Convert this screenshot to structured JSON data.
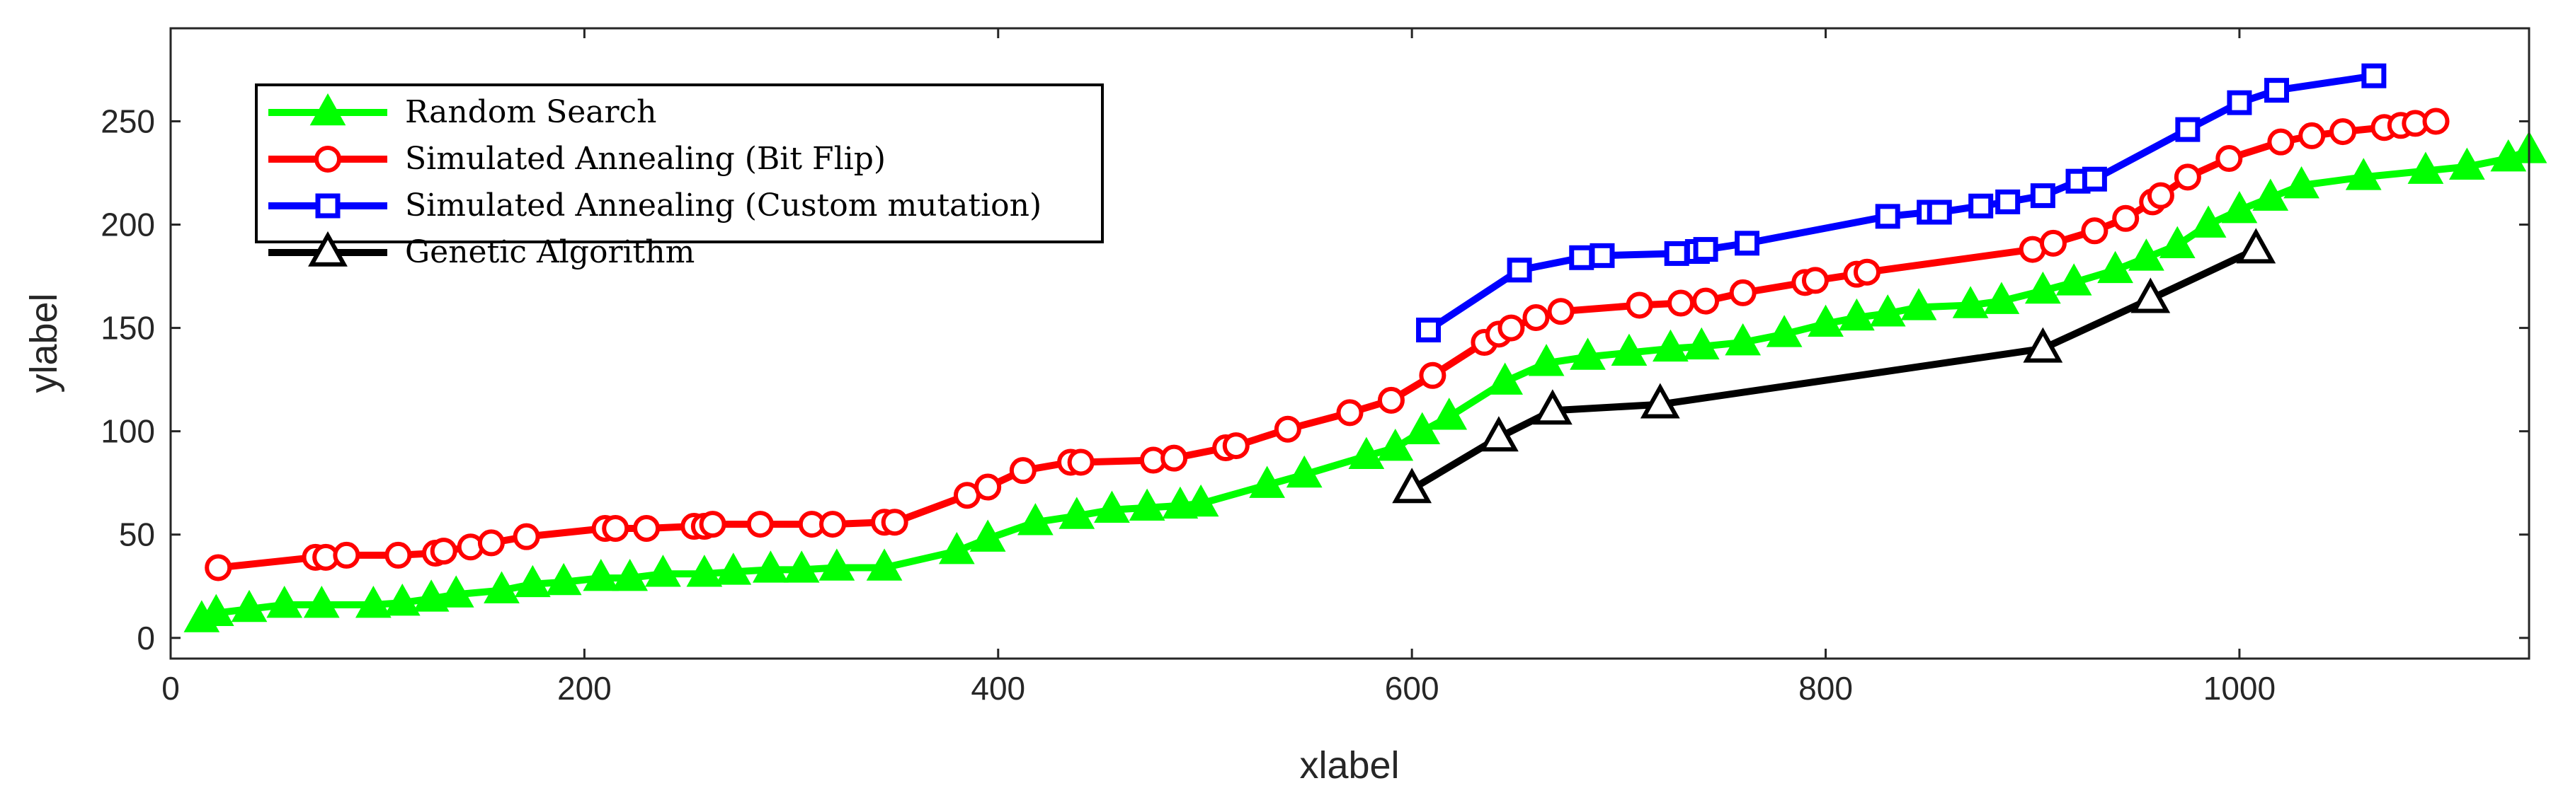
{
  "chart_data": {
    "type": "line",
    "title": "",
    "xlabel": "xlabel",
    "ylabel": "ylabel",
    "xlim": [
      0,
      1140
    ],
    "ylim": [
      -10,
      295
    ],
    "xticks": [
      0,
      200,
      400,
      600,
      800,
      1000
    ],
    "yticks": [
      0,
      50,
      100,
      150,
      200,
      250
    ],
    "grid": false,
    "legend_position": "top-left",
    "series": [
      {
        "name": "Random Search",
        "color": "#00ff00",
        "marker": "triangle-filled",
        "x": [
          15,
          22,
          38,
          55,
          73,
          98,
          112,
          126,
          138,
          160,
          175,
          190,
          208,
          222,
          238,
          258,
          272,
          290,
          305,
          322,
          345,
          380,
          395,
          418,
          438,
          455,
          472,
          488,
          498,
          530,
          548,
          578,
          592,
          605,
          618,
          645,
          665,
          685,
          705,
          725,
          740,
          760,
          780,
          800,
          815,
          830,
          845,
          870,
          885,
          905,
          920,
          940,
          955,
          970,
          985,
          1000,
          1015,
          1030,
          1060,
          1090,
          1110,
          1130,
          1140
        ],
        "y": [
          9,
          12,
          14,
          16,
          16,
          16,
          17,
          19,
          21,
          23,
          26,
          27,
          29,
          29,
          31,
          31,
          32,
          33,
          33,
          34,
          34,
          42,
          48,
          56,
          59,
          62,
          63,
          64,
          65,
          74,
          79,
          88,
          92,
          100,
          107,
          124,
          133,
          136,
          138,
          140,
          141,
          143,
          147,
          152,
          155,
          157,
          160,
          161,
          163,
          168,
          172,
          178,
          184,
          190,
          200,
          207,
          213,
          219,
          223,
          226,
          228,
          232,
          236
        ]
      },
      {
        "name": "Simulated Annealing (Bit Flip)",
        "color": "#ff0000",
        "marker": "circle",
        "x": [
          23,
          70,
          75,
          85,
          110,
          128,
          132,
          145,
          155,
          172,
          210,
          215,
          230,
          253,
          258,
          262,
          285,
          310,
          320,
          345,
          350,
          385,
          395,
          412,
          435,
          440,
          475,
          485,
          510,
          515,
          540,
          570,
          590,
          610,
          635,
          642,
          648,
          660,
          672,
          710,
          730,
          742,
          760,
          790,
          795,
          815,
          820,
          900,
          910,
          930,
          945,
          958,
          962,
          975,
          995,
          1020,
          1035,
          1050,
          1070,
          1078,
          1085,
          1095
        ],
        "y": [
          34,
          39,
          39,
          40,
          40,
          41,
          42,
          44,
          46,
          49,
          53,
          53,
          53,
          54,
          54,
          55,
          55,
          55,
          55,
          56,
          56,
          69,
          73,
          81,
          85,
          85,
          86,
          87,
          92,
          93,
          101,
          109,
          115,
          127,
          143,
          147,
          150,
          155,
          158,
          161,
          162,
          163,
          167,
          172,
          173,
          176,
          177,
          188,
          191,
          197,
          203,
          211,
          214,
          223,
          232,
          240,
          243,
          245,
          247,
          248,
          249,
          250
        ]
      },
      {
        "name": "Simulated Annealing (Custom mutation)",
        "color": "#0000ff",
        "marker": "square",
        "x": [
          608,
          652,
          682,
          692,
          728,
          738,
          742,
          762,
          830,
          850,
          855,
          875,
          888,
          905,
          922,
          930,
          975,
          1000,
          1018,
          1065
        ],
        "y": [
          149,
          178,
          184,
          185,
          186,
          187,
          188,
          191,
          204,
          206,
          206,
          209,
          211,
          214,
          221,
          222,
          246,
          259,
          265,
          272
        ]
      },
      {
        "name": "Genetic Algorithm",
        "color": "#000000",
        "marker": "triangle",
        "x": [
          600,
          642,
          668,
          720,
          905,
          957,
          1008
        ],
        "y": [
          72,
          97,
          110,
          113,
          140,
          164,
          188
        ]
      }
    ]
  }
}
